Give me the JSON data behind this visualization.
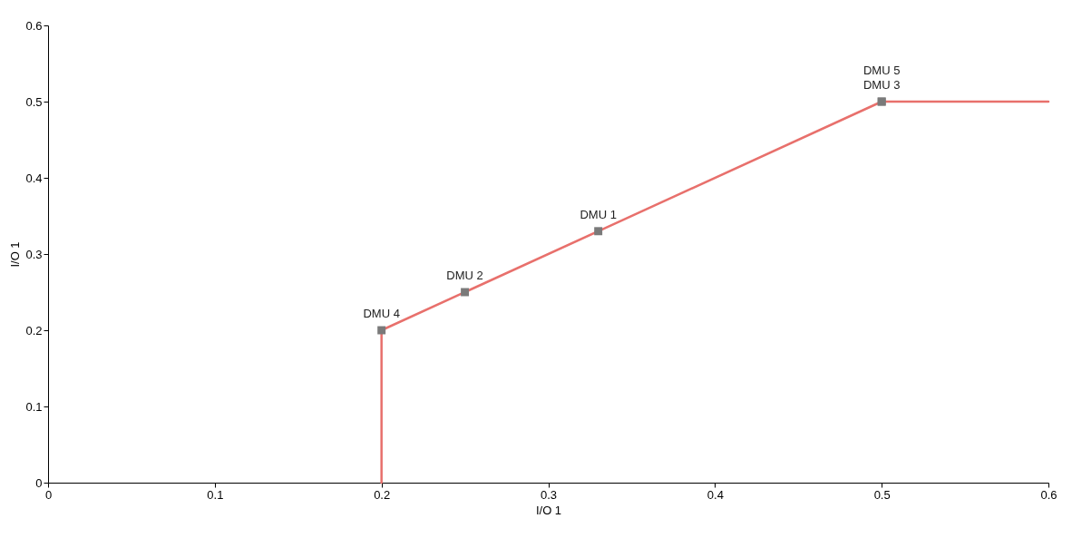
{
  "chart_data": {
    "type": "line",
    "xlabel": "I/O 1",
    "ylabel": "I/O 1",
    "xlim": [
      0,
      0.6
    ],
    "xticks": [
      0,
      0.1,
      0.2,
      0.3,
      0.4,
      0.5,
      0.6
    ],
    "ylim": [
      0,
      0.6
    ],
    "yticks": [
      0,
      0.1,
      0.2,
      0.3,
      0.4,
      0.5,
      0.6
    ],
    "grid": false,
    "series": [
      {
        "color": "#e8706c",
        "line_style": "solid",
        "marker": "none",
        "x": [
          0.2,
          0.2,
          0.25,
          0.33,
          0.5,
          0.6
        ],
        "values": [
          0,
          0.2,
          0.25,
          0.33,
          0.5,
          0.5
        ]
      },
      {
        "type": "scatter",
        "color": "#7a7a7a",
        "marker": "square",
        "x": [
          0.33,
          0.25,
          0.5,
          0.2,
          0.5
        ],
        "values": [
          0.33,
          0.25,
          0.5,
          0.2,
          0.5
        ]
      }
    ],
    "annotations": [
      {
        "text": "DMU 1",
        "x": 0.33,
        "y": 0.33
      },
      {
        "text": "DMU 2",
        "x": 0.25,
        "y": 0.25
      },
      {
        "text": "DMU 3",
        "x": 0.5,
        "y": 0.5
      },
      {
        "text": "DMU 4",
        "x": 0.2,
        "y": 0.2
      },
      {
        "text": "DMU 5",
        "x": 0.5,
        "y": 0.5
      }
    ]
  }
}
